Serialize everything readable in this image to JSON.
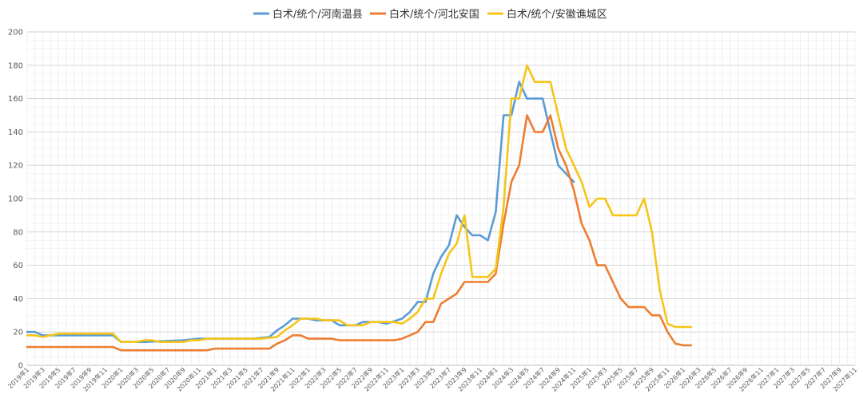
{
  "chart_data": {
    "type": "line",
    "title": "",
    "xlabel": "",
    "ylabel": "",
    "ylim": [
      0,
      200
    ],
    "y_ticks": [
      0,
      20,
      40,
      60,
      80,
      100,
      120,
      140,
      160,
      180,
      200
    ],
    "grid": true,
    "legend_position": "top",
    "x_start": "2019-01",
    "x_end": "2027-11",
    "x_tick_step_months": 2,
    "x_tick_labels": [
      "2019年1",
      "2019年3",
      "2019年5",
      "2019年7",
      "2019年9",
      "2019年11",
      "2020年1",
      "2020年3",
      "2020年5",
      "2020年7",
      "2020年9",
      "2020年11",
      "2021年1",
      "2021年3",
      "2021年5",
      "2021年7",
      "2021年9",
      "2021年11",
      "2022年1",
      "2022年3",
      "2022年5",
      "2022年7",
      "2022年9",
      "2022年11",
      "2023年1",
      "2023年3",
      "2023年5",
      "2023年7",
      "2023年9",
      "2023年11",
      "2024年1",
      "2024年3",
      "2024年5",
      "2024年7",
      "2024年9",
      "2024年11",
      "2025年1",
      "2025年3",
      "2025年5",
      "2025年7",
      "2025年9",
      "2025年11",
      "2026年1",
      "2026年3",
      "2026年5",
      "2026年7",
      "2026年9",
      "2026年11",
      "2027年1",
      "2027年3",
      "2027年5",
      "2027年7",
      "2027年9",
      "2027年11"
    ],
    "series": [
      {
        "name": "白术/统个/河南温县",
        "color": "#5B9BD5",
        "points": [
          [
            "2019-01",
            20
          ],
          [
            "2019-02",
            20
          ],
          [
            "2019-03",
            18
          ],
          [
            "2019-12",
            18
          ],
          [
            "2020-01",
            14
          ],
          [
            "2020-02",
            14
          ],
          [
            "2020-04",
            14
          ],
          [
            "2020-09",
            15
          ],
          [
            "2020-11",
            16
          ],
          [
            "2021-06",
            16
          ],
          [
            "2021-08",
            17
          ],
          [
            "2021-09",
            21
          ],
          [
            "2021-10",
            24
          ],
          [
            "2021-11",
            28
          ],
          [
            "2022-01",
            28
          ],
          [
            "2022-02",
            27
          ],
          [
            "2022-04",
            27
          ],
          [
            "2022-05",
            24
          ],
          [
            "2022-07",
            24
          ],
          [
            "2022-08",
            26
          ],
          [
            "2022-10",
            26
          ],
          [
            "2022-11",
            25
          ],
          [
            "2023-01",
            28
          ],
          [
            "2023-02",
            32
          ],
          [
            "2023-03",
            38
          ],
          [
            "2023-04",
            38
          ],
          [
            "2023-05",
            55
          ],
          [
            "2023-06",
            65
          ],
          [
            "2023-07",
            72
          ],
          [
            "2023-08",
            90
          ],
          [
            "2023-09",
            83
          ],
          [
            "2023-10",
            78
          ],
          [
            "2023-11",
            78
          ],
          [
            "2023-12",
            75
          ],
          [
            "2024-01",
            92
          ],
          [
            "2024-02",
            150
          ],
          [
            "2024-03",
            150
          ],
          [
            "2024-04",
            170
          ],
          [
            "2024-05",
            160
          ],
          [
            "2024-06",
            160
          ],
          [
            "2024-07",
            160
          ],
          [
            "2024-08",
            140
          ],
          [
            "2024-09",
            120
          ],
          [
            "2024-10",
            115
          ],
          [
            "2024-11",
            110
          ]
        ]
      },
      {
        "name": "白术/统个/河北安国",
        "color": "#ED7D31",
        "points": [
          [
            "2019-01",
            11
          ],
          [
            "2019-12",
            11
          ],
          [
            "2020-01",
            9
          ],
          [
            "2020-12",
            9
          ],
          [
            "2021-01",
            10
          ],
          [
            "2021-08",
            10
          ],
          [
            "2021-09",
            13
          ],
          [
            "2021-10",
            15
          ],
          [
            "2021-11",
            18
          ],
          [
            "2021-12",
            18
          ],
          [
            "2022-01",
            16
          ],
          [
            "2022-04",
            16
          ],
          [
            "2022-05",
            15
          ],
          [
            "2022-12",
            15
          ],
          [
            "2023-01",
            16
          ],
          [
            "2023-02",
            18
          ],
          [
            "2023-03",
            20
          ],
          [
            "2023-04",
            26
          ],
          [
            "2023-05",
            26
          ],
          [
            "2023-06",
            37
          ],
          [
            "2023-07",
            40
          ],
          [
            "2023-08",
            43
          ],
          [
            "2023-09",
            50
          ],
          [
            "2023-12",
            50
          ],
          [
            "2024-01",
            55
          ],
          [
            "2024-02",
            85
          ],
          [
            "2024-03",
            110
          ],
          [
            "2024-04",
            120
          ],
          [
            "2024-05",
            150
          ],
          [
            "2024-06",
            140
          ],
          [
            "2024-07",
            140
          ],
          [
            "2024-08",
            150
          ],
          [
            "2024-09",
            130
          ],
          [
            "2024-10",
            120
          ],
          [
            "2024-11",
            105
          ],
          [
            "2024-12",
            85
          ],
          [
            "2025-01",
            75
          ],
          [
            "2025-02",
            60
          ],
          [
            "2025-03",
            60
          ],
          [
            "2025-04",
            50
          ],
          [
            "2025-05",
            40
          ],
          [
            "2025-06",
            35
          ],
          [
            "2025-08",
            35
          ],
          [
            "2025-09",
            30
          ],
          [
            "2025-10",
            30
          ],
          [
            "2025-11",
            20
          ],
          [
            "2025-12",
            13
          ],
          [
            "2026-01",
            12
          ],
          [
            "2026-02",
            12
          ]
        ]
      },
      {
        "name": "白术/统个/安徽谯城区",
        "color": "#F5C518",
        "points": [
          [
            "2019-01",
            18
          ],
          [
            "2019-02",
            18
          ],
          [
            "2019-03",
            17
          ],
          [
            "2019-04",
            18
          ],
          [
            "2019-05",
            19
          ],
          [
            "2019-12",
            19
          ],
          [
            "2020-01",
            14
          ],
          [
            "2020-03",
            14
          ],
          [
            "2020-04",
            15
          ],
          [
            "2020-05",
            15
          ],
          [
            "2020-06",
            14
          ],
          [
            "2020-09",
            14
          ],
          [
            "2020-10",
            15
          ],
          [
            "2020-11",
            15
          ],
          [
            "2020-12",
            16
          ],
          [
            "2021-06",
            16
          ],
          [
            "2021-07",
            16
          ],
          [
            "2021-09",
            17
          ],
          [
            "2021-10",
            21
          ],
          [
            "2021-11",
            24
          ],
          [
            "2021-12",
            28
          ],
          [
            "2022-02",
            28
          ],
          [
            "2022-03",
            27
          ],
          [
            "2022-05",
            27
          ],
          [
            "2022-06",
            24
          ],
          [
            "2022-08",
            24
          ],
          [
            "2022-09",
            26
          ],
          [
            "2022-12",
            26
          ],
          [
            "2023-01",
            25
          ],
          [
            "2023-02",
            28
          ],
          [
            "2023-03",
            32
          ],
          [
            "2023-04",
            40
          ],
          [
            "2023-05",
            40
          ],
          [
            "2023-06",
            55
          ],
          [
            "2023-07",
            67
          ],
          [
            "2023-08",
            73
          ],
          [
            "2023-09",
            90
          ],
          [
            "2023-10",
            53
          ],
          [
            "2023-12",
            53
          ],
          [
            "2024-01",
            58
          ],
          [
            "2024-02",
            95
          ],
          [
            "2024-03",
            160
          ],
          [
            "2024-04",
            160
          ],
          [
            "2024-05",
            180
          ],
          [
            "2024-06",
            170
          ],
          [
            "2024-08",
            170
          ],
          [
            "2024-09",
            150
          ],
          [
            "2024-10",
            130
          ],
          [
            "2024-11",
            120
          ],
          [
            "2024-12",
            110
          ],
          [
            "2025-01",
            95
          ],
          [
            "2025-02",
            100
          ],
          [
            "2025-03",
            100
          ],
          [
            "2025-04",
            90
          ],
          [
            "2025-07",
            90
          ],
          [
            "2025-08",
            100
          ],
          [
            "2025-09",
            80
          ],
          [
            "2025-10",
            45
          ],
          [
            "2025-11",
            25
          ],
          [
            "2025-12",
            23
          ],
          [
            "2026-02",
            23
          ]
        ]
      }
    ]
  }
}
